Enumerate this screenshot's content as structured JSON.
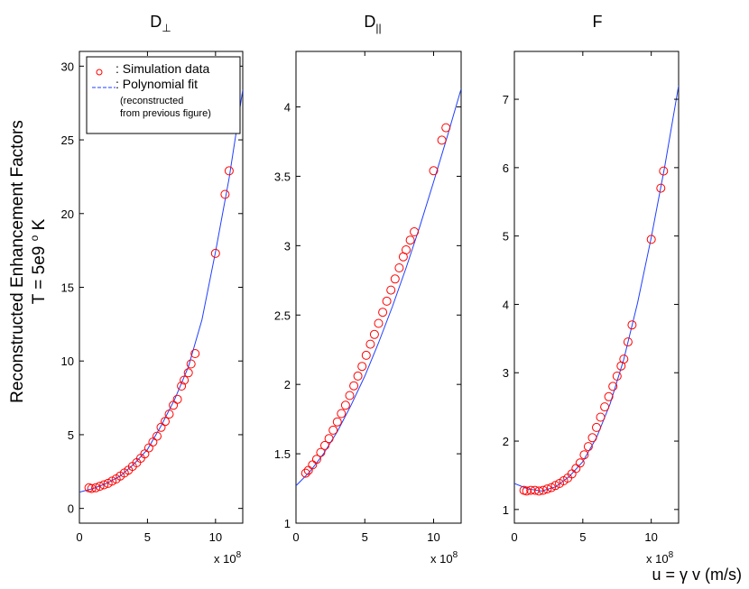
{
  "figure": {
    "ylabel_line1": "Reconstructed Enhancement Factors",
    "ylabel_line2": "T = 5e9 o K",
    "ylabel_parts": {
      "prefix": "T = 5e9 ",
      "sup": "o",
      "suffix": " K"
    },
    "xlabel": "u = γ v  (m/s)",
    "x_multiplier": {
      "base": "x 10",
      "exp": "8"
    },
    "legend": {
      "sim_label": ": Simulation data",
      "fit_label": ": Polynomial fit",
      "note_line1": "(reconstructed",
      "note_line2": "from previous figure)"
    },
    "colors": {
      "points": "#ff0000",
      "fit": "#1f3fff",
      "axis": "#000000"
    }
  },
  "chart_data": [
    {
      "type": "scatter",
      "title": "D",
      "title_subscript": "⊥",
      "xlabel": "",
      "ylabel": "",
      "xlim": [
        0,
        12
      ],
      "ylim": [
        -1,
        31
      ],
      "xticks": [
        0,
        5,
        10
      ],
      "yticks": [
        0,
        5,
        10,
        15,
        20,
        25,
        30
      ],
      "ytick_labels": [
        "0",
        "5",
        "10",
        "15",
        "20",
        "25",
        "30"
      ],
      "xtick_labels": [
        "0",
        "5",
        "10"
      ],
      "x_unit_scale": 100000000.0,
      "fit": {
        "x": [
          0,
          1,
          2,
          3,
          4,
          5,
          6,
          7,
          8,
          9,
          10,
          11,
          12
        ],
        "y": [
          1.1,
          1.35,
          1.7,
          2.2,
          3.0,
          4.0,
          5.6,
          7.4,
          9.6,
          12.8,
          17.4,
          22.4,
          28.4
        ]
      },
      "series": [
        {
          "name": "Simulation data",
          "x": [
            0.7,
            0.9,
            1.2,
            1.5,
            1.8,
            2.1,
            2.4,
            2.7,
            3.0,
            3.3,
            3.6,
            3.9,
            4.2,
            4.5,
            4.8,
            5.1,
            5.4,
            5.7,
            6.0,
            6.3,
            6.6,
            6.9,
            7.2,
            7.5,
            7.7,
            8.0,
            8.2,
            8.5,
            10.0,
            10.7,
            11.0
          ],
          "y": [
            1.4,
            1.35,
            1.4,
            1.5,
            1.6,
            1.7,
            1.85,
            2.0,
            2.2,
            2.4,
            2.6,
            2.85,
            3.1,
            3.4,
            3.7,
            4.1,
            4.5,
            4.9,
            5.5,
            5.9,
            6.4,
            7.0,
            7.4,
            8.3,
            8.7,
            9.2,
            9.8,
            10.5,
            17.3,
            21.3,
            22.9
          ]
        }
      ]
    },
    {
      "type": "scatter",
      "title": "D",
      "title_subscript": "||",
      "xlabel": "",
      "ylabel": "",
      "xlim": [
        0,
        12
      ],
      "ylim": [
        1,
        4.4
      ],
      "xticks": [
        0,
        5,
        10
      ],
      "yticks": [
        1,
        1.5,
        2,
        2.5,
        3,
        3.5,
        4
      ],
      "ytick_labels": [
        "1",
        "1.5",
        "2",
        "2.5",
        "3",
        "3.5",
        "4"
      ],
      "xtick_labels": [
        "0",
        "5",
        "10"
      ],
      "x_unit_scale": 100000000.0,
      "fit": {
        "x": [
          0,
          1,
          2,
          3,
          4,
          5,
          6,
          7,
          8,
          9,
          10,
          11,
          12
        ],
        "y": [
          1.27,
          1.37,
          1.5,
          1.66,
          1.85,
          2.06,
          2.3,
          2.56,
          2.84,
          3.14,
          3.46,
          3.79,
          4.13
        ]
      },
      "series": [
        {
          "name": "Simulation data",
          "x": [
            0.7,
            0.9,
            1.2,
            1.5,
            1.8,
            2.1,
            2.4,
            2.7,
            3.0,
            3.3,
            3.6,
            3.9,
            4.2,
            4.5,
            4.8,
            5.1,
            5.4,
            5.7,
            6.0,
            6.3,
            6.6,
            6.9,
            7.2,
            7.5,
            7.8,
            8.0,
            8.3,
            8.6,
            10.0,
            10.6,
            10.9
          ],
          "y": [
            1.36,
            1.38,
            1.42,
            1.46,
            1.51,
            1.56,
            1.61,
            1.67,
            1.73,
            1.79,
            1.85,
            1.92,
            1.99,
            2.06,
            2.13,
            2.21,
            2.29,
            2.36,
            2.44,
            2.52,
            2.6,
            2.68,
            2.76,
            2.84,
            2.92,
            2.97,
            3.04,
            3.1,
            3.54,
            3.76,
            3.85
          ]
        }
      ]
    },
    {
      "type": "scatter",
      "title": "F",
      "title_subscript": "",
      "xlabel": "",
      "ylabel": "",
      "xlim": [
        0,
        12
      ],
      "ylim": [
        0.8,
        7.7
      ],
      "xticks": [
        0,
        5,
        10
      ],
      "yticks": [
        1,
        2,
        3,
        4,
        5,
        6,
        7
      ],
      "ytick_labels": [
        "1",
        "2",
        "3",
        "4",
        "5",
        "6",
        "7"
      ],
      "xtick_labels": [
        "0",
        "5",
        "10"
      ],
      "x_unit_scale": 100000000.0,
      "fit": {
        "x": [
          0,
          1,
          2,
          3,
          4,
          5,
          6,
          7,
          8,
          9,
          10,
          11,
          12
        ],
        "y": [
          1.38,
          1.3,
          1.27,
          1.33,
          1.48,
          1.7,
          2.05,
          2.55,
          3.2,
          4.02,
          4.98,
          6.03,
          7.2
        ]
      },
      "series": [
        {
          "name": "Simulation data",
          "x": [
            0.7,
            0.9,
            1.2,
            1.5,
            1.8,
            2.1,
            2.4,
            2.7,
            3.0,
            3.3,
            3.6,
            3.9,
            4.2,
            4.5,
            4.8,
            5.1,
            5.4,
            5.7,
            6.0,
            6.3,
            6.6,
            6.9,
            7.2,
            7.5,
            7.8,
            8.0,
            8.3,
            8.6,
            10.0,
            10.7,
            10.9
          ],
          "y": [
            1.28,
            1.27,
            1.28,
            1.28,
            1.27,
            1.28,
            1.3,
            1.32,
            1.35,
            1.38,
            1.42,
            1.46,
            1.52,
            1.6,
            1.68,
            1.8,
            1.92,
            2.05,
            2.2,
            2.35,
            2.5,
            2.65,
            2.8,
            2.95,
            3.1,
            3.2,
            3.45,
            3.7,
            4.95,
            5.7,
            5.95
          ]
        }
      ]
    }
  ]
}
